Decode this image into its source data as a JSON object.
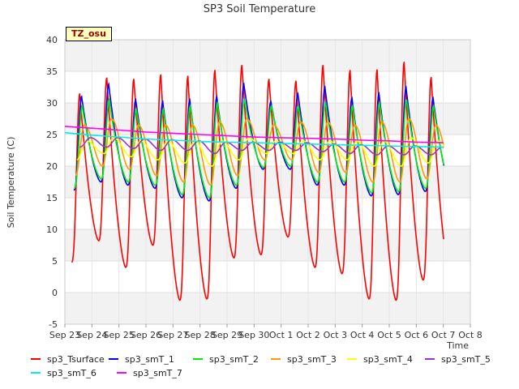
{
  "chart_data": {
    "type": "line",
    "title": "SP3 Soil Temperature",
    "xlabel": "Time",
    "ylabel": "Soil Temperature (C)",
    "site_label": "TZ_osu",
    "ylim": [
      -5,
      40
    ],
    "yticks": [
      -5,
      0,
      5,
      10,
      15,
      20,
      25,
      30,
      35,
      40
    ],
    "xlim": [
      0,
      15
    ],
    "xticks": [
      0,
      1,
      2,
      3,
      4,
      5,
      6,
      7,
      8,
      9,
      10,
      11,
      12,
      13,
      14,
      15
    ],
    "xtick_labels": [
      "Sep 23",
      "Sep 24",
      "Sep 25",
      "Sep 26",
      "Sep 27",
      "Sep 28",
      "Sep 29",
      "Sep 30",
      "Oct 1",
      "Oct 2",
      "Oct 3",
      "Oct 4",
      "Oct 5",
      "Oct 6",
      "Oct 7",
      "Oct 8"
    ],
    "x_unit": "days since Sep 23",
    "bands": [
      [
        -5,
        0
      ],
      [
        5,
        10
      ],
      [
        15,
        20
      ],
      [
        25,
        30
      ],
      [
        35,
        40
      ]
    ],
    "series": [
      {
        "name": "sp3_Tsurface",
        "color": "#ff0000",
        "daily_min": [
          4.8,
          8.2,
          4.0,
          7.5,
          -1.2,
          -1.0,
          5.5,
          6.0,
          8.8,
          4.0,
          3.0,
          -1.0,
          -1.2,
          2.0,
          2.8,
          7.5
        ],
        "daily_max": [
          31.5,
          34.0,
          33.8,
          34.5,
          34.3,
          35.2,
          36.0,
          33.8,
          33.5,
          36.0,
          35.2,
          35.3,
          36.5,
          34.1
        ]
      },
      {
        "name": "sp3_smT_1",
        "color": "#0000ff",
        "daily_min": [
          16.2,
          17.5,
          17.0,
          16.5,
          15.0,
          14.5,
          16.5,
          19.5,
          19.5,
          17.0,
          17.0,
          15.3,
          15.5,
          16.0,
          16.2,
          19.0
        ],
        "daily_max": [
          31.0,
          33.0,
          30.5,
          30.2,
          30.5,
          31.0,
          33.0,
          30.2,
          31.5,
          32.5,
          30.8,
          31.5,
          32.5,
          30.8
        ]
      },
      {
        "name": "sp3_smT_2",
        "color": "#00ee00",
        "daily_min": [
          16.5,
          18.0,
          17.5,
          17.0,
          15.5,
          15.0,
          17.0,
          19.8,
          20.0,
          17.5,
          17.5,
          15.8,
          16.0,
          16.5,
          16.5,
          20.0
        ],
        "daily_max": [
          29.5,
          30.5,
          29.0,
          29.0,
          29.5,
          30.0,
          30.5,
          29.5,
          29.5,
          30.0,
          29.5,
          30.0,
          30.5,
          29.5
        ]
      },
      {
        "name": "sp3_smT_3",
        "color": "#ff9900",
        "daily_min": [
          18.5,
          20.0,
          19.5,
          18.5,
          17.5,
          17.0,
          18.5,
          21.0,
          21.0,
          19.0,
          19.0,
          17.5,
          17.5,
          18.0,
          18.0,
          21.0
        ],
        "daily_max": [
          26.5,
          27.5,
          26.5,
          26.5,
          26.5,
          27.0,
          27.5,
          26.5,
          27.0,
          27.0,
          26.5,
          27.0,
          27.5,
          26.5
        ]
      },
      {
        "name": "sp3_smT_4",
        "color": "#ffff00",
        "daily_min": [
          21.0,
          22.0,
          21.5,
          21.0,
          20.5,
          20.0,
          21.0,
          22.0,
          22.0,
          21.0,
          21.0,
          20.0,
          20.0,
          20.5,
          20.5,
          22.0
        ],
        "daily_max": [
          24.0,
          24.5,
          24.0,
          24.0,
          24.0,
          24.0,
          24.5,
          24.0,
          24.0,
          24.0,
          24.0,
          24.0,
          24.5,
          24.0
        ]
      },
      {
        "name": "sp3_smT_5",
        "color": "#9933cc",
        "daily_min": [
          23.0,
          23.0,
          22.8,
          22.5,
          22.5,
          22.0,
          22.5,
          22.5,
          22.5,
          22.3,
          22.0,
          21.8,
          21.8,
          21.8,
          21.8,
          22.0
        ],
        "daily_max": [
          24.5,
          24.5,
          24.3,
          24.2,
          24.0,
          23.8,
          23.8,
          23.8,
          23.7,
          23.5,
          23.4,
          23.2,
          23.2,
          23.0
        ]
      },
      {
        "name": "sp3_smT_6",
        "color": "#00eeee",
        "x": [
          0,
          1,
          2,
          3,
          4,
          5,
          6,
          7,
          8,
          9,
          10,
          11,
          12,
          13,
          14
        ],
        "y": [
          25.3,
          24.9,
          24.6,
          24.3,
          24.1,
          23.9,
          23.8,
          23.7,
          23.6,
          23.5,
          23.4,
          23.3,
          23.2,
          23.1,
          23.0
        ]
      },
      {
        "name": "sp3_smT_7",
        "color": "#ff00ff",
        "x": [
          0,
          1,
          2,
          3,
          4,
          5,
          6,
          7,
          8,
          9,
          10,
          11,
          12,
          13,
          14
        ],
        "y": [
          26.3,
          26.0,
          25.7,
          25.4,
          25.2,
          25.0,
          24.8,
          24.6,
          24.5,
          24.4,
          24.3,
          24.1,
          24.0,
          23.8,
          23.7
        ]
      }
    ]
  }
}
